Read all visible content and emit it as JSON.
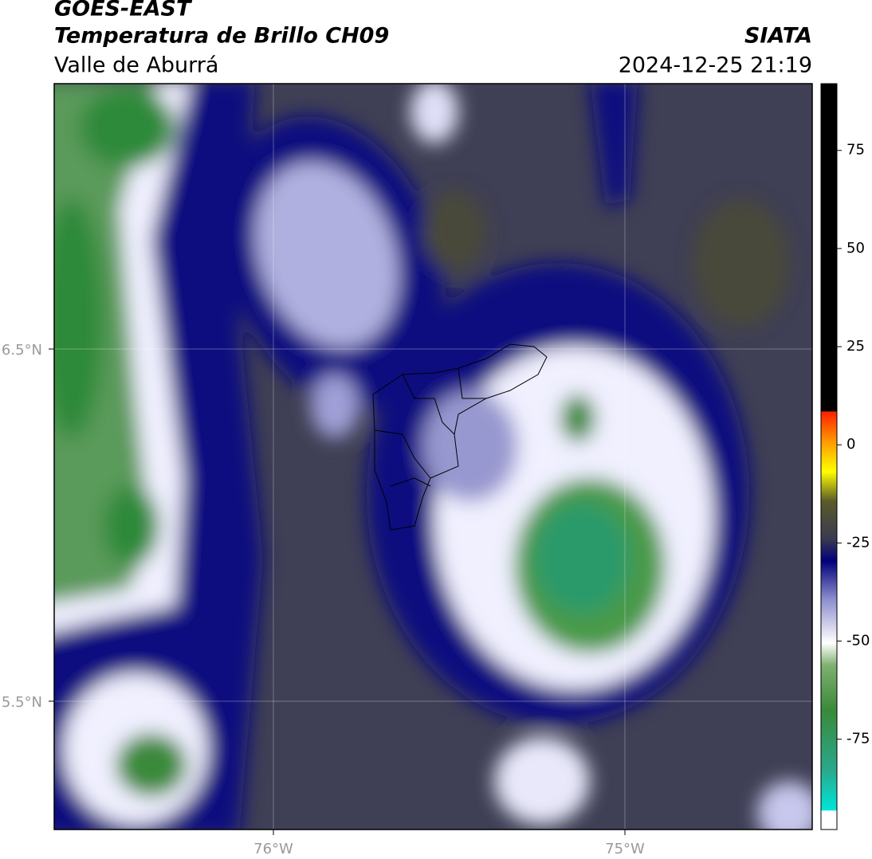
{
  "header": {
    "satellite": "GOES-EAST",
    "product": "Temperatura de Brillo CH09",
    "region": "Valle de Aburrá",
    "source": "SIATA",
    "datetime": "2024-12-25 21:19"
  },
  "map": {
    "lat_labels": [
      "6.5°N",
      "5.5°N"
    ],
    "lon_labels": [
      "76°W",
      "75°W"
    ]
  },
  "colorbar": {
    "lim": [
      -98,
      92
    ],
    "ticks": [
      75,
      50,
      25,
      0,
      -25,
      -50,
      -75
    ]
  }
}
